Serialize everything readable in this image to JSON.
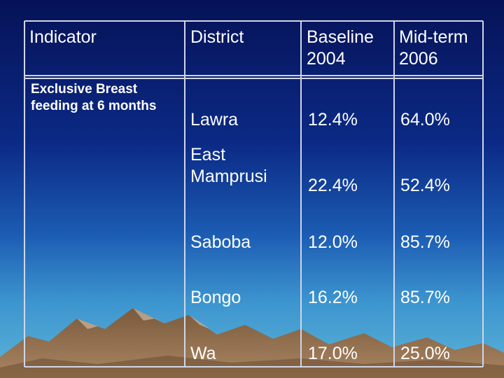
{
  "table": {
    "headers": {
      "indicator": "Indicator",
      "district": "District",
      "baseline": "Baseline",
      "baseline_year": "2004",
      "midterm": "Mid-term",
      "midterm_year": "2006"
    },
    "indicator_label": "Exclusive Breast feeding at 6 months",
    "rows": [
      {
        "district": "Lawra",
        "baseline": "12.4%",
        "midterm": "64.0%"
      },
      {
        "district": "East Mamprusi",
        "baseline": "22.4%",
        "midterm": "52.4%"
      },
      {
        "district": "Saboba",
        "baseline": "12.0%",
        "midterm": "85.7%"
      },
      {
        "district": "Bongo",
        "baseline": "16.2%",
        "midterm": "85.7%"
      },
      {
        "district": "Wa",
        "baseline": "17.0%",
        "midterm": "25.0%"
      }
    ]
  },
  "colors": {
    "sky_top": "#061257",
    "sky_bottom": "#5cb4d8",
    "mountain": "#8a6a4a",
    "grid_line": "#d0d6e8"
  }
}
